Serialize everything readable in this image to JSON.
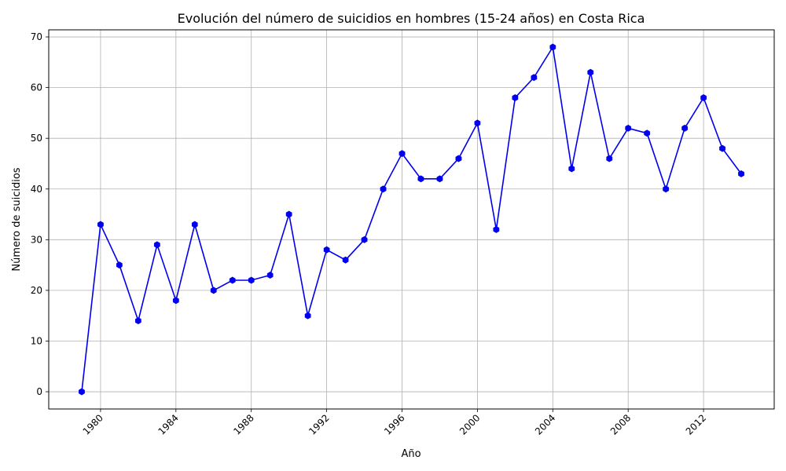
{
  "chart_data": {
    "type": "line",
    "title": "Evolución del número de suicidios en hombres (15-24 años) en Costa Rica",
    "xlabel": "Año",
    "ylabel": "Número de suicidios",
    "x": [
      1979,
      1980,
      1981,
      1982,
      1983,
      1984,
      1985,
      1986,
      1987,
      1988,
      1989,
      1990,
      1991,
      1992,
      1993,
      1994,
      1995,
      1996,
      1997,
      1998,
      1999,
      2000,
      2001,
      2002,
      2003,
      2004,
      2005,
      2006,
      2007,
      2008,
      2009,
      2010,
      2011,
      2012,
      2013,
      2014
    ],
    "series": [
      {
        "values": [
          0,
          33,
          25,
          14,
          29,
          18,
          33,
          20,
          22,
          22,
          23,
          35,
          15,
          28,
          26,
          30,
          40,
          47,
          42,
          42,
          46,
          53,
          32,
          58,
          62,
          68,
          44,
          63,
          46,
          52,
          51,
          40,
          52,
          58,
          48,
          43
        ],
        "color": "#0000ee",
        "marker": "hexagon"
      }
    ],
    "xticks": [
      1980,
      1984,
      1988,
      1992,
      1996,
      2000,
      2004,
      2008,
      2012
    ],
    "yticks": [
      0,
      10,
      20,
      30,
      40,
      50,
      60,
      70
    ],
    "xlim": [
      1977.25,
      2015.75
    ],
    "ylim": [
      -3.4,
      71.4
    ],
    "grid": true,
    "legend": "none"
  }
}
